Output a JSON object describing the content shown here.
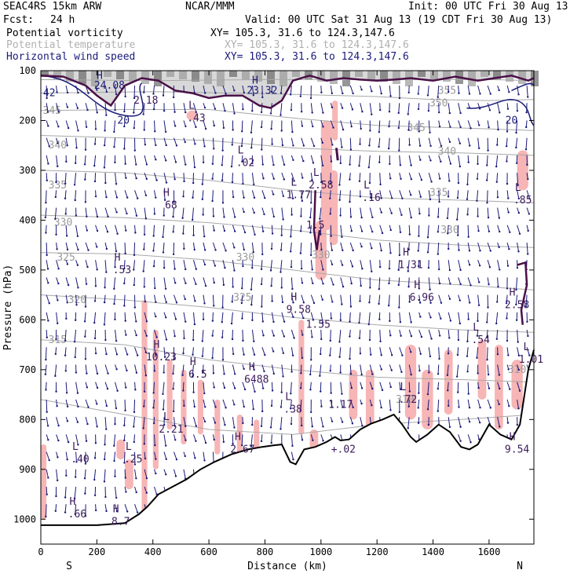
{
  "header": {
    "model": "SEAC4RS 15km ARW",
    "center": "NCAR/MMM",
    "init": "Init: 00 UTC Fri 30 Aug 13",
    "fcst_label": "Fcst:",
    "fcst_value": "24 h",
    "valid": "Valid: 00 UTC Sat 31 Aug 13 (19 CDT Fri 30 Aug 13)",
    "fields": [
      {
        "name": "Potential vorticity",
        "xy": "XY= 105.3, 31.6 to 124.3,147.6",
        "color": "#000000"
      },
      {
        "name": "Potential temperature",
        "xy": "XY= 105.3, 31.6 to 124.3,147.6",
        "color": "#b0b0b0"
      },
      {
        "name": "Horizontal wind speed",
        "xy": "XY= 105.3, 31.6 to 124.3,147.6",
        "color": "#1a1a7a"
      }
    ]
  },
  "chart_data": {
    "type": "cross-section",
    "xlabel": "Distance (km)",
    "ylabel": "Pressure (hPa)",
    "xlim": [
      0,
      1760
    ],
    "ylim": [
      1050,
      100
    ],
    "x_ticks": [
      0,
      200,
      400,
      600,
      800,
      1000,
      1200,
      1400,
      1600
    ],
    "y_ticks": [
      100,
      200,
      300,
      400,
      500,
      600,
      700,
      800,
      900,
      1000
    ],
    "endpoints": {
      "left": "S",
      "right": "N"
    },
    "terrain_pressure": [
      [
        0,
        1012
      ],
      [
        100,
        1012
      ],
      [
        200,
        1012
      ],
      [
        300,
        1008
      ],
      [
        350,
        990
      ],
      [
        380,
        975
      ],
      [
        420,
        950
      ],
      [
        470,
        935
      ],
      [
        520,
        920
      ],
      [
        570,
        900
      ],
      [
        620,
        885
      ],
      [
        680,
        870
      ],
      [
        740,
        860
      ],
      [
        790,
        855
      ],
      [
        830,
        852
      ],
      [
        860,
        850
      ],
      [
        890,
        885
      ],
      [
        910,
        890
      ],
      [
        940,
        860
      ],
      [
        980,
        855
      ],
      [
        1020,
        845
      ],
      [
        1050,
        835
      ],
      [
        1070,
        842
      ],
      [
        1100,
        840
      ],
      [
        1140,
        820
      ],
      [
        1180,
        808
      ],
      [
        1220,
        800
      ],
      [
        1260,
        790
      ],
      [
        1290,
        810
      ],
      [
        1320,
        835
      ],
      [
        1340,
        845
      ],
      [
        1380,
        830
      ],
      [
        1420,
        810
      ],
      [
        1460,
        825
      ],
      [
        1500,
        855
      ],
      [
        1530,
        860
      ],
      [
        1560,
        850
      ],
      [
        1600,
        810
      ],
      [
        1640,
        830
      ],
      [
        1680,
        840
      ],
      [
        1710,
        810
      ],
      [
        1740,
        700
      ],
      [
        1760,
        660
      ]
    ],
    "theta_contours": [
      {
        "label": "355",
        "points": [
          [
            0,
            118
          ],
          [
            400,
            120
          ],
          [
            800,
            118
          ],
          [
            1200,
            118
          ],
          [
            1600,
            118
          ],
          [
            1760,
            120
          ]
        ]
      },
      {
        "label": "350",
        "points": [
          [
            0,
            145
          ],
          [
            400,
            142
          ],
          [
            800,
            146
          ],
          [
            1200,
            152
          ],
          [
            1400,
            158
          ],
          [
            1600,
            160
          ],
          [
            1760,
            158
          ]
        ]
      },
      {
        "label": "345",
        "points": [
          [
            0,
            180
          ],
          [
            300,
            178
          ],
          [
            600,
            178
          ],
          [
            900,
            195
          ],
          [
            1200,
            210
          ],
          [
            1500,
            215
          ],
          [
            1760,
            220
          ]
        ]
      },
      {
        "label": "340",
        "points": [
          [
            0,
            230
          ],
          [
            300,
            235
          ],
          [
            600,
            240
          ],
          [
            900,
            255
          ],
          [
            1200,
            262
          ],
          [
            1500,
            265
          ],
          [
            1760,
            270
          ]
        ]
      },
      {
        "label": "335",
        "points": [
          [
            0,
            300
          ],
          [
            300,
            305
          ],
          [
            600,
            320
          ],
          [
            900,
            340
          ],
          [
            1200,
            355
          ],
          [
            1500,
            360
          ],
          [
            1760,
            365
          ]
        ]
      },
      {
        "label": "330",
        "points": [
          [
            0,
            390
          ],
          [
            300,
            395
          ],
          [
            600,
            405
          ],
          [
            900,
            420
          ],
          [
            1200,
            440
          ],
          [
            1500,
            450
          ],
          [
            1760,
            455
          ]
        ]
      },
      {
        "label": "325",
        "points": [
          [
            0,
            465
          ],
          [
            300,
            468
          ],
          [
            600,
            480
          ],
          [
            900,
            500
          ],
          [
            1200,
            520
          ],
          [
            1500,
            530
          ],
          [
            1760,
            540
          ]
        ]
      },
      {
        "label": "320",
        "points": [
          [
            0,
            550
          ],
          [
            300,
            560
          ],
          [
            600,
            575
          ],
          [
            900,
            595
          ],
          [
            1200,
            610
          ],
          [
            1500,
            620
          ],
          [
            1760,
            625
          ]
        ]
      },
      {
        "label": "315",
        "points": [
          [
            0,
            640
          ],
          [
            300,
            650
          ],
          [
            600,
            680
          ],
          [
            900,
            700
          ],
          [
            1200,
            715
          ],
          [
            1500,
            720
          ],
          [
            1760,
            725
          ]
        ]
      },
      {
        "label": "310",
        "points": [
          [
            0,
            760
          ],
          [
            300,
            790
          ],
          [
            600,
            820
          ],
          [
            900,
            830
          ],
          [
            1200,
            810
          ],
          [
            1500,
            800
          ],
          [
            1760,
            790
          ]
        ]
      }
    ],
    "theta_labels": [
      {
        "text": "355",
        "x": 1450,
        "p": 140
      },
      {
        "text": "350",
        "x": 1420,
        "p": 165
      },
      {
        "text": "345",
        "x": 1340,
        "p": 215
      },
      {
        "text": "340",
        "x": 1450,
        "p": 262
      },
      {
        "text": "335",
        "x": 1420,
        "p": 345
      },
      {
        "text": "330",
        "x": 1460,
        "p": 420
      },
      {
        "text": "325",
        "x": 90,
        "p": 475
      },
      {
        "text": "320",
        "x": 130,
        "p": 560
      },
      {
        "text": "315",
        "x": 60,
        "p": 640
      },
      {
        "text": "310",
        "x": 1300,
        "p": 760
      },
      {
        "text": "340",
        "x": 60,
        "p": 250
      },
      {
        "text": "335",
        "x": 60,
        "p": 330
      },
      {
        "text": "330",
        "x": 80,
        "p": 405
      },
      {
        "text": "345",
        "x": 40,
        "p": 180
      },
      {
        "text": "330",
        "x": 730,
        "p": 475
      },
      {
        "text": "325",
        "x": 720,
        "p": 555
      },
      {
        "text": "310",
        "x": 1700,
        "p": 700
      },
      {
        "text": "330",
        "x": 1000,
        "p": 470
      }
    ],
    "pv_tropopause": [
      [
        0,
        110
      ],
      [
        80,
        112
      ],
      [
        160,
        130
      ],
      [
        200,
        150
      ],
      [
        250,
        170
      ],
      [
        300,
        130
      ],
      [
        360,
        115
      ],
      [
        420,
        120
      ],
      [
        480,
        140
      ],
      [
        540,
        145
      ],
      [
        600,
        155
      ],
      [
        660,
        150
      ],
      [
        720,
        150
      ],
      [
        780,
        170
      ],
      [
        820,
        175
      ],
      [
        860,
        160
      ],
      [
        900,
        120
      ],
      [
        960,
        110
      ],
      [
        1020,
        120
      ],
      [
        1080,
        115
      ],
      [
        1140,
        118
      ],
      [
        1200,
        120
      ],
      [
        1260,
        118
      ],
      [
        1320,
        115
      ],
      [
        1400,
        120
      ],
      [
        1480,
        112
      ],
      [
        1560,
        120
      ],
      [
        1620,
        115
      ],
      [
        1680,
        110
      ],
      [
        1740,
        120
      ],
      [
        1760,
        115
      ]
    ],
    "wind_labels": [
      {
        "text": "H",
        "x": 210,
        "p": 110
      },
      {
        "text": "24.08",
        "x": 245,
        "p": 130
      },
      {
        "text": "42",
        "x": 30,
        "p": 145
      },
      {
        "text": "20",
        "x": 295,
        "p": 200
      },
      {
        "text": "H",
        "x": 765,
        "p": 120
      },
      {
        "text": "23.32",
        "x": 790,
        "p": 140
      },
      {
        "text": "20",
        "x": 1680,
        "p": 200
      }
    ],
    "extrema_labels": [
      {
        "sym": "H",
        "val": "68",
        "x": 465,
        "p": 370
      },
      {
        "sym": "L",
        "val": ".43",
        "x": 555,
        "p": 195
      },
      {
        "sym": "L",
        "val": ".02",
        "x": 730,
        "p": 285
      },
      {
        "sym": "",
        "val": "2.18",
        "x": 375,
        "p": 160
      },
      {
        "sym": "L",
        "val": "2.58",
        "x": 1000,
        "p": 330
      },
      {
        "sym": "L",
        "val": "1.77",
        "x": 920,
        "p": 350
      },
      {
        "sym": "",
        "val": "1.5",
        "x": 980,
        "p": 410
      },
      {
        "sym": "L",
        "val": ".16",
        "x": 1180,
        "p": 355
      },
      {
        "sym": "L",
        "val": ".85",
        "x": 1720,
        "p": 360
      },
      {
        "sym": "H",
        "val": "1.31",
        "x": 1320,
        "p": 490
      },
      {
        "sym": "H",
        "val": "6.96",
        "x": 1360,
        "p": 555
      },
      {
        "sym": "H",
        "val": "2.58",
        "x": 1700,
        "p": 570
      },
      {
        "sym": "H",
        "val": ".53",
        "x": 290,
        "p": 500
      },
      {
        "sym": "H",
        "val": "9.58",
        "x": 920,
        "p": 580
      },
      {
        "sym": "",
        "val": "1.55",
        "x": 990,
        "p": 610
      },
      {
        "sym": "L",
        "val": ".54",
        "x": 1570,
        "p": 640
      },
      {
        "sym": "L",
        "val": "1.01",
        "x": 1750,
        "p": 680
      },
      {
        "sym": "H",
        "val": "10.23",
        "x": 430,
        "p": 675
      },
      {
        "sym": "H",
        "val": "6.5",
        "x": 560,
        "p": 710
      },
      {
        "sym": "H",
        "val": "6488",
        "x": 770,
        "p": 720
      },
      {
        "sym": "L",
        "val": ".38",
        "x": 900,
        "p": 780
      },
      {
        "sym": "",
        "val": "1.17",
        "x": 1070,
        "p": 770
      },
      {
        "sym": "L",
        "val": ".72",
        "x": 1310,
        "p": 760
      },
      {
        "sym": "L",
        "val": "2.21",
        "x": 465,
        "p": 820
      },
      {
        "sym": "H",
        "val": "2.67",
        "x": 720,
        "p": 860
      },
      {
        "sym": "",
        "val": "+.02",
        "x": 1080,
        "p": 860
      },
      {
        "sym": "H",
        "val": "9.54",
        "x": 1700,
        "p": 860
      },
      {
        "sym": "L",
        "val": ".40",
        "x": 140,
        "p": 880
      },
      {
        "sym": "L",
        "val": ".25",
        "x": 330,
        "p": 880
      },
      {
        "sym": "H",
        "val": ".66",
        "x": 130,
        "p": 990
      },
      {
        "sym": "H",
        "val": "8.7",
        "x": 285,
        "p": 1005
      }
    ],
    "pv_shading": [
      [
        360,
        1000,
        380,
        560
      ],
      [
        400,
        900,
        420,
        620
      ],
      [
        450,
        820,
        470,
        680
      ],
      [
        500,
        850,
        520,
        700
      ],
      [
        560,
        830,
        580,
        720
      ],
      [
        620,
        870,
        640,
        760
      ],
      [
        700,
        880,
        720,
        790
      ],
      [
        760,
        860,
        780,
        800
      ],
      [
        920,
        830,
        940,
        600
      ],
      [
        980,
        520,
        1020,
        400
      ],
      [
        1030,
        450,
        1060,
        300
      ],
      [
        960,
        880,
        990,
        820
      ],
      [
        1100,
        800,
        1130,
        700
      ],
      [
        1160,
        820,
        1190,
        700
      ],
      [
        1300,
        800,
        1340,
        650
      ],
      [
        1360,
        820,
        1400,
        700
      ],
      [
        1440,
        790,
        1470,
        660
      ],
      [
        1560,
        760,
        1590,
        640
      ],
      [
        1620,
        820,
        1650,
        650
      ],
      [
        1680,
        780,
        1720,
        680
      ],
      [
        1700,
        340,
        1740,
        260
      ],
      [
        270,
        880,
        300,
        840
      ],
      [
        300,
        940,
        330,
        880
      ],
      [
        0,
        1000,
        20,
        850
      ],
      [
        1000,
        420,
        1040,
        200
      ],
      [
        1040,
        240,
        1060,
        160
      ],
      [
        520,
        200,
        560,
        180
      ]
    ]
  }
}
